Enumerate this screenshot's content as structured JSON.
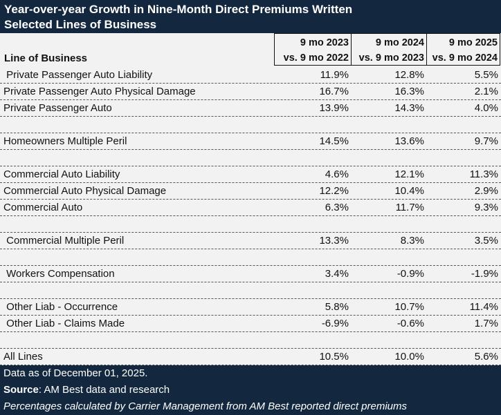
{
  "title": {
    "line1": "Year-over-year Growth in Nine-Month Direct Premiums Written",
    "line2": "Selected Lines of Business"
  },
  "header": {
    "line_of_business": "Line of Business",
    "columns": [
      {
        "line1": "9 mo 2023",
        "line2": "vs. 9 mo 2022"
      },
      {
        "line1": "9 mo 2024",
        "line2": "vs. 9 mo 2023"
      },
      {
        "line1": "9 mo 2025",
        "line2": "vs. 9 mo 2024"
      }
    ]
  },
  "rows": [
    {
      "label": " Private Passenger Auto Liability",
      "values": [
        "11.9%",
        "12.8%",
        "5.5%"
      ]
    },
    {
      "label": "Private Passenger Auto Physical Damage",
      "values": [
        "16.7%",
        "16.3%",
        "2.1%"
      ]
    },
    {
      "label": "Private Passenger Auto",
      "values": [
        "13.9%",
        "14.3%",
        "4.0%"
      ]
    },
    {
      "label": "",
      "values": [
        "",
        "",
        ""
      ]
    },
    {
      "label": "Homeowners Multiple Peril",
      "values": [
        "14.5%",
        "13.6%",
        "9.7%"
      ]
    },
    {
      "label": "",
      "values": [
        "",
        "",
        ""
      ]
    },
    {
      "label": "Commercial Auto Liability",
      "values": [
        "4.6%",
        "12.1%",
        "11.3%"
      ]
    },
    {
      "label": "Commercial Auto Physical Damage",
      "values": [
        "12.2%",
        "10.4%",
        "2.9%"
      ]
    },
    {
      "label": "Commercial Auto",
      "values": [
        "6.3%",
        "11.7%",
        "9.3%"
      ]
    },
    {
      "label": "",
      "values": [
        "",
        "",
        ""
      ]
    },
    {
      "label": " Commercial Multiple Peril",
      "values": [
        "13.3%",
        "8.3%",
        "3.5%"
      ]
    },
    {
      "label": "",
      "values": [
        "",
        "",
        ""
      ]
    },
    {
      "label": " Workers Compensation",
      "values": [
        "3.4%",
        "-0.9%",
        "-1.9%"
      ]
    },
    {
      "label": "",
      "values": [
        "",
        "",
        ""
      ]
    },
    {
      "label": " Other Liab - Occurrence",
      "values": [
        "5.8%",
        "10.7%",
        "11.4%"
      ]
    },
    {
      "label": " Other Liab - Claims Made",
      "values": [
        "-6.9%",
        "-0.6%",
        "1.7%"
      ]
    },
    {
      "label": "",
      "values": [
        "",
        "",
        ""
      ]
    },
    {
      "label": "All Lines",
      "values": [
        "10.5%",
        "10.0%",
        "5.6%"
      ]
    }
  ],
  "footer": {
    "date_note": "Data as of December 01, 2025.",
    "source_label": "Source",
    "source_text": ": AM Best data and research",
    "method_note": "Percentages calculated by Carrier Management from AM Best reported direct premiums"
  },
  "colors": {
    "band": "#13283f",
    "background": "#f2f2f2"
  }
}
